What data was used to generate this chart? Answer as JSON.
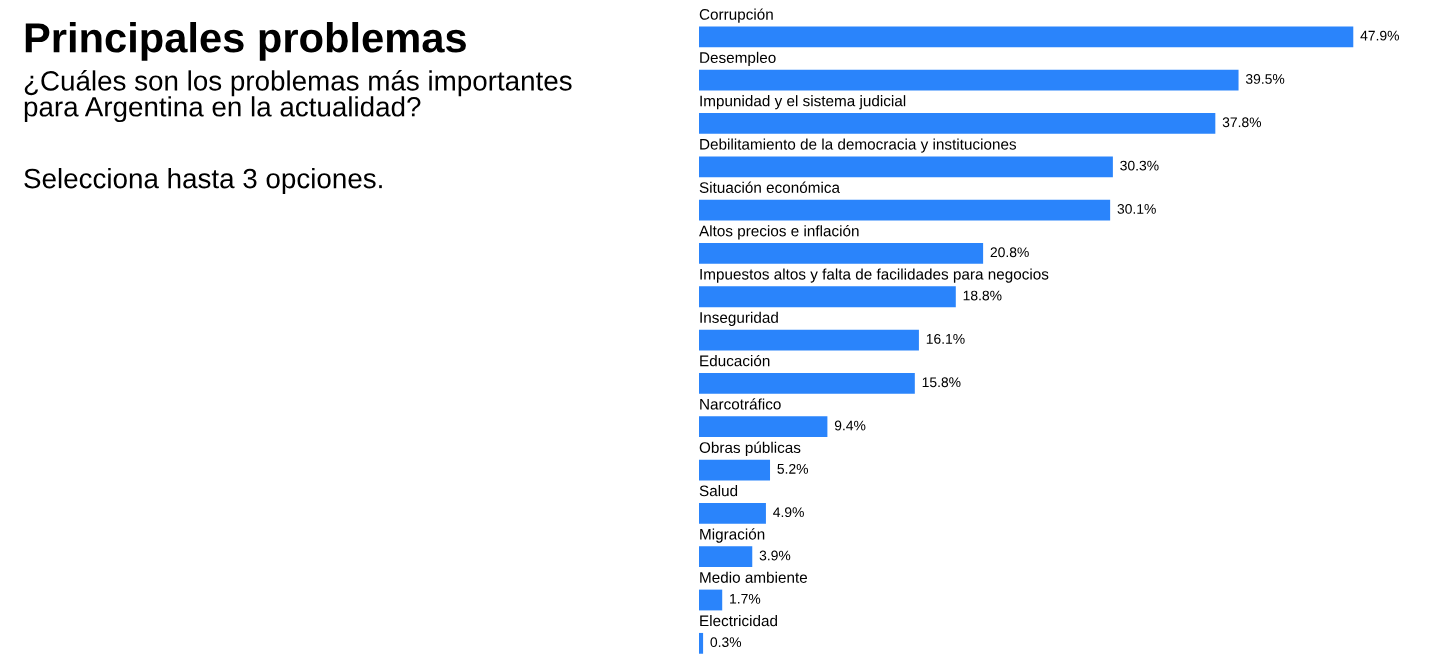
{
  "chart_data": {
    "type": "bar",
    "orientation": "horizontal",
    "title": "Principales problemas",
    "subtitle": "¿Cuáles son los problemas más importantes\npara Argentina en la actualidad?",
    "annotations": [
      "Selecciona hasta 3 opciones."
    ],
    "categories": [
      "Corrupción",
      "Desempleo",
      "Impunidad y el sistema judicial",
      "Debilitamiento de la democracia y instituciones",
      "Situación económica",
      "Altos precios e inflación",
      "Impuestos altos y falta de facilidades para negocios",
      "Inseguridad",
      "Educación",
      "Narcotráfico",
      "Obras públicas",
      "Salud",
      "Migración",
      "Medio ambiente",
      "Electricidad"
    ],
    "values": [
      47.9,
      39.5,
      37.8,
      30.3,
      30.1,
      20.8,
      18.8,
      16.1,
      15.8,
      9.4,
      5.2,
      4.9,
      3.9,
      1.7,
      0.3
    ],
    "value_labels": [
      "47.9%",
      "39.5%",
      "37.8%",
      "30.3%",
      "30.1%",
      "20.8%",
      "18.8%",
      "16.1%",
      "15.8%",
      "9.4%",
      "5.2%",
      "4.9%",
      "3.9%",
      "1.7%",
      "0.3%"
    ],
    "color": "#2a84fb"
  }
}
